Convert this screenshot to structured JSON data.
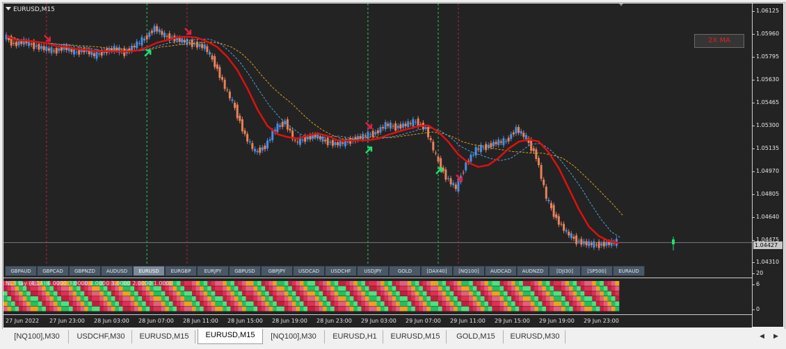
{
  "window": {
    "symbol_title": "EURUSD,M15"
  },
  "indicator": {
    "ma_label": "2X MA",
    "heat_caption": "NL3 tay (4,14) 6.0000 3.0000 4.0000 3.0000 2.0000 1.0000"
  },
  "price_axis": {
    "ticks": [
      "1.06125",
      "1.05960",
      "1.05795",
      "1.05630",
      "1.05465",
      "1.05300",
      "1.05135",
      "1.04970",
      "1.04805",
      "1.04640",
      "1.04475",
      "1.04310"
    ],
    "current_price": "1.04427"
  },
  "sub_axis": {
    "ticks": [
      "20",
      "6",
      "0"
    ]
  },
  "symbols": [
    {
      "label": "GBPAUD"
    },
    {
      "label": "GBPCAD"
    },
    {
      "label": "GBPNZD"
    },
    {
      "label": "AUDUSD"
    },
    {
      "label": "EURUSD"
    },
    {
      "label": "EURGBP"
    },
    {
      "label": "EURJPY"
    },
    {
      "label": "GBPUSD"
    },
    {
      "label": "GBPJPY"
    },
    {
      "label": "USDCAD"
    },
    {
      "label": "USDCHF"
    },
    {
      "label": "USDJPY"
    },
    {
      "label": "GOLD"
    },
    {
      "label": "[DAX40]"
    },
    {
      "label": "[NQ100]"
    },
    {
      "label": "AUDCAD"
    },
    {
      "label": "AUDNZD"
    },
    {
      "label": "[DJI30]"
    },
    {
      "label": "[SP500]"
    },
    {
      "label": "EURAUD"
    }
  ],
  "active_symbol": "EURUSD",
  "time_labels": [
    "27 Jun 2022",
    "27 Jun 23:00",
    "28 Jun 03:00",
    "28 Jun 07:00",
    "28 Jun 11:00",
    "28 Jun 15:00",
    "28 Jun 19:00",
    "28 Jun 23:00",
    "29 Jun 03:00",
    "29 Jun 07:00",
    "29 Jun 11:00",
    "29 Jun 15:00",
    "29 Jun 19:00",
    "29 Jun 23:00"
  ],
  "tabs": [
    {
      "label": "[NQ100],M30"
    },
    {
      "label": "USDCHF,M30"
    },
    {
      "label": "EURUSD,M15"
    },
    {
      "label": "EURUSD,M15"
    },
    {
      "label": "[NQ100],M30"
    },
    {
      "label": "EURUSD,H1"
    },
    {
      "label": "EURUSD,M15"
    },
    {
      "label": "GOLD,M15"
    },
    {
      "label": "EURUSD,M30"
    }
  ],
  "active_tab_index": 3,
  "colors": {
    "background": "#232323",
    "bull_candle": "#4a8de0",
    "bear_candle": "#e8825a",
    "ma_fast": "#e01010",
    "ma_slow": "#e0a020",
    "ma_mid": "#4aa8e0",
    "signal_buy": "#20e070",
    "signal_sell": "#e02040",
    "heat_palette": [
      "#e03050",
      "#e06080",
      "#f0a020",
      "#20c060",
      "#50e080",
      "#c02040"
    ]
  },
  "chart_data": {
    "type": "candlestick",
    "close": [
      1.0592,
      1.0586,
      1.0588,
      1.0585,
      1.0583,
      1.0581,
      1.0584,
      1.058,
      1.0582,
      1.0578,
      1.0581,
      1.0583,
      1.058,
      1.0585,
      1.059,
      1.0598,
      1.0592,
      1.059,
      1.0588,
      1.0586,
      1.0584,
      1.0572,
      1.0555,
      1.054,
      1.052,
      1.0508,
      1.0512,
      1.0525,
      1.053,
      1.0515,
      1.0518,
      1.052,
      1.0516,
      1.0514,
      1.0515,
      1.0518,
      1.052,
      1.0522,
      1.0528,
      1.0526,
      1.0528,
      1.053,
      1.0525,
      1.0505,
      1.049,
      1.0482,
      1.05,
      1.051,
      1.0512,
      1.0515,
      1.0516,
      1.0525,
      1.0518,
      1.0505,
      1.0475,
      1.046,
      1.045,
      1.0444,
      1.0442,
      1.0441,
      1.0442,
      1.0443
    ],
    "signals_sell_index": [
      4,
      18,
      36,
      45
    ],
    "signals_buy_index": [
      14,
      36,
      43
    ],
    "vlines_sell_index": [
      4,
      18,
      36,
      45
    ],
    "vlines_buy_index": [
      14,
      36,
      43
    ]
  }
}
